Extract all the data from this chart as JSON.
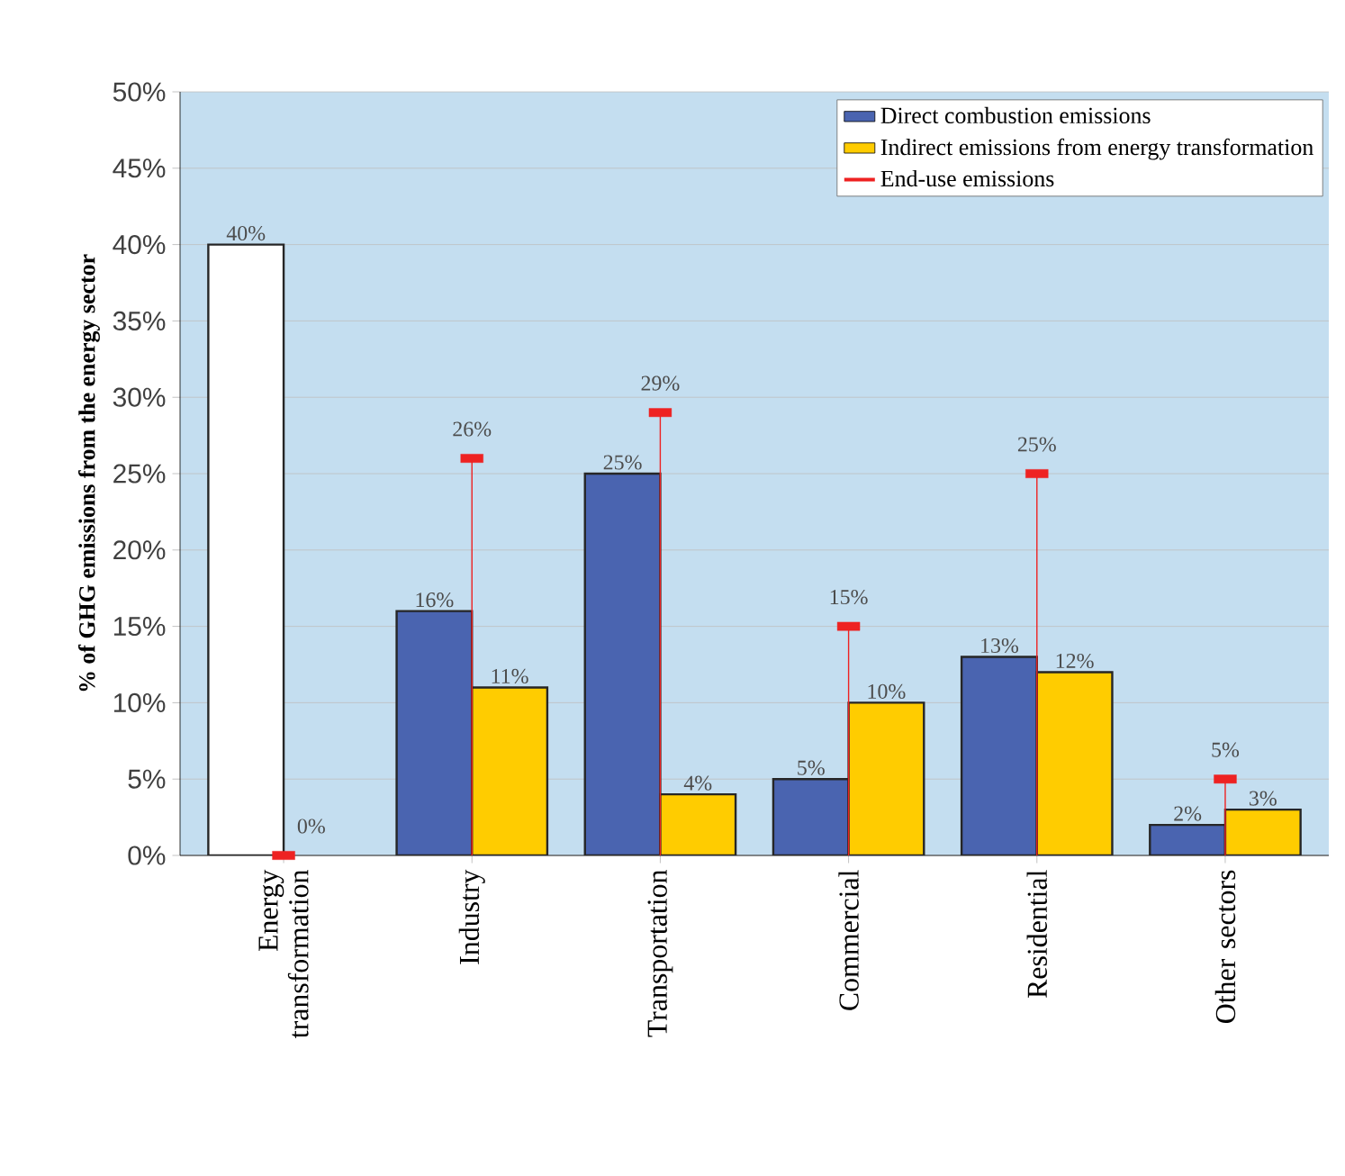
{
  "chart_data": {
    "type": "bar",
    "ylabel": "% of GHG emissions from the energy sector",
    "categories": [
      "Energy transformation",
      "Industry",
      "Transportation",
      "Commercial",
      "Residential",
      "Other sectors"
    ],
    "series": [
      {
        "name": "Direct combustion emissions",
        "color": "#4a64b0",
        "colors": [
          "#ffffff",
          "#4a64b0",
          "#4a64b0",
          "#4a64b0",
          "#4a64b0",
          "#4a64b0"
        ],
        "values": [
          40,
          16,
          25,
          5,
          13,
          2
        ],
        "value_labels": [
          "40%",
          "16%",
          "25%",
          "5%",
          "13%",
          "2%"
        ]
      },
      {
        "name": "Indirect emissions from energy transformation",
        "color": "#ffcc00",
        "values": [
          null,
          11,
          4,
          10,
          12,
          3
        ],
        "value_labels": [
          null,
          "11%",
          "4%",
          "10%",
          "12%",
          "3%"
        ]
      },
      {
        "name": "End-use emissions",
        "type": "lollipop",
        "color": "#ee2222",
        "values": [
          0,
          26,
          29,
          15,
          25,
          5
        ],
        "value_labels": [
          "0%",
          "26%",
          "29%",
          "15%",
          "25%",
          "5%"
        ]
      }
    ],
    "ylim": [
      0,
      50
    ],
    "yticks": [
      {
        "value": 0,
        "label": "0%"
      },
      {
        "value": 5,
        "label": "5%"
      },
      {
        "value": 10,
        "label": "10%"
      },
      {
        "value": 15,
        "label": "15%"
      },
      {
        "value": 20,
        "label": "20%"
      },
      {
        "value": 25,
        "label": "25%"
      },
      {
        "value": 30,
        "label": "30%"
      },
      {
        "value": 35,
        "label": "35%"
      },
      {
        "value": 40,
        "label": "40%"
      },
      {
        "value": 45,
        "label": "45%"
      },
      {
        "value": 50,
        "label": "50%"
      }
    ],
    "grid": "y",
    "legend": "top right"
  }
}
